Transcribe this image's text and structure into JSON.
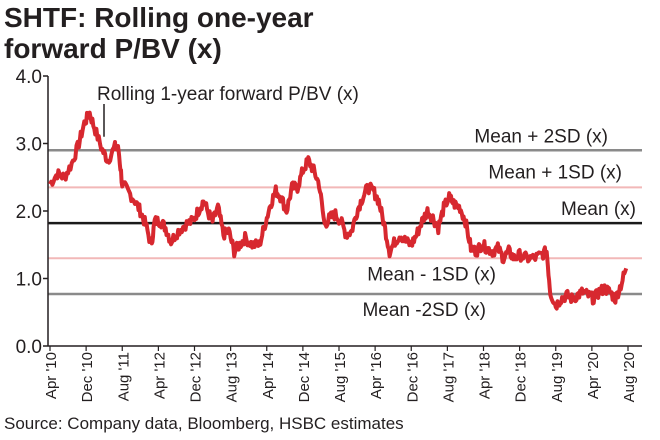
{
  "title_line1": "SHTF: Rolling one-year",
  "title_line2": "forward P/BV (x)",
  "source": "Source: Company data, Bloomberg, HSBC estimates",
  "colors": {
    "series": "#d7282f",
    "mean": "#1a1a1a",
    "sd2": "#8a8a8a",
    "sd1": "#f2b8b8",
    "text": "#231f20"
  },
  "chart_data": {
    "type": "line",
    "ylim": [
      0,
      4
    ],
    "yticks": [
      "0.0",
      "1.0",
      "2.0",
      "3.0",
      "4.0"
    ],
    "xticks": [
      "Apr '10",
      "Dec '10",
      "Aug '11",
      "Apr '12",
      "Dec '12",
      "Aug '13",
      "Apr '14",
      "Dec '14",
      "Aug '15",
      "Apr '16",
      "Dec '16",
      "Aug '17",
      "Apr '18",
      "Dec '18",
      "Aug '19",
      "Apr '20",
      "Aug '20"
    ],
    "series": [
      {
        "name": "Rolling 1-year forward P/BV (x)",
        "x_index_range": [
          0,
          16
        ],
        "values": [
          [
            0.0,
            2.4
          ],
          [
            0.2,
            2.55
          ],
          [
            0.4,
            2.5
          ],
          [
            0.6,
            2.7
          ],
          [
            0.8,
            3.0
          ],
          [
            0.95,
            3.3
          ],
          [
            1.1,
            3.45
          ],
          [
            1.25,
            3.2
          ],
          [
            1.45,
            2.9
          ],
          [
            1.6,
            2.75
          ],
          [
            1.8,
            2.95
          ],
          [
            1.9,
            2.9
          ],
          [
            2.0,
            2.4
          ],
          [
            2.15,
            2.3
          ],
          [
            2.35,
            2.15
          ],
          [
            2.5,
            2.0
          ],
          [
            2.65,
            1.8
          ],
          [
            2.8,
            1.5
          ],
          [
            2.9,
            1.85
          ],
          [
            3.05,
            1.85
          ],
          [
            3.2,
            1.75
          ],
          [
            3.35,
            1.55
          ],
          [
            3.55,
            1.7
          ],
          [
            3.75,
            1.8
          ],
          [
            3.95,
            1.85
          ],
          [
            4.1,
            2.0
          ],
          [
            4.25,
            2.15
          ],
          [
            4.4,
            1.95
          ],
          [
            4.5,
            1.85
          ],
          [
            4.65,
            2.05
          ],
          [
            4.8,
            1.65
          ],
          [
            4.95,
            1.7
          ],
          [
            5.1,
            1.4
          ],
          [
            5.25,
            1.5
          ],
          [
            5.4,
            1.6
          ],
          [
            5.6,
            1.5
          ],
          [
            5.8,
            1.5
          ],
          [
            5.95,
            1.8
          ],
          [
            6.1,
            2.1
          ],
          [
            6.25,
            2.3
          ],
          [
            6.4,
            2.2
          ],
          [
            6.55,
            2.0
          ],
          [
            6.7,
            2.35
          ],
          [
            6.85,
            2.35
          ],
          [
            7.0,
            2.6
          ],
          [
            7.15,
            2.75
          ],
          [
            7.3,
            2.6
          ],
          [
            7.45,
            2.4
          ],
          [
            7.6,
            1.8
          ],
          [
            7.75,
            1.9
          ],
          [
            7.9,
            1.95
          ],
          [
            8.05,
            1.85
          ],
          [
            8.2,
            1.65
          ],
          [
            8.35,
            1.7
          ],
          [
            8.5,
            2.0
          ],
          [
            8.65,
            2.2
          ],
          [
            8.8,
            2.35
          ],
          [
            8.95,
            2.3
          ],
          [
            9.1,
            2.15
          ],
          [
            9.25,
            1.8
          ],
          [
            9.4,
            1.4
          ],
          [
            9.55,
            1.55
          ],
          [
            9.7,
            1.65
          ],
          [
            9.85,
            1.55
          ],
          [
            10.0,
            1.5
          ],
          [
            10.15,
            1.65
          ],
          [
            10.3,
            1.85
          ],
          [
            10.45,
            2.0
          ],
          [
            10.6,
            1.9
          ],
          [
            10.75,
            1.75
          ],
          [
            10.9,
            2.05
          ],
          [
            11.05,
            2.2
          ],
          [
            11.2,
            2.1
          ],
          [
            11.35,
            2.05
          ],
          [
            11.5,
            1.85
          ],
          [
            11.65,
            1.45
          ],
          [
            11.8,
            1.4
          ],
          [
            11.95,
            1.5
          ],
          [
            12.1,
            1.45
          ],
          [
            12.25,
            1.4
          ],
          [
            12.4,
            1.45
          ],
          [
            12.55,
            1.3
          ],
          [
            12.7,
            1.4
          ],
          [
            12.85,
            1.3
          ],
          [
            13.0,
            1.35
          ],
          [
            13.2,
            1.3
          ],
          [
            13.4,
            1.3
          ],
          [
            13.6,
            1.35
          ],
          [
            13.75,
            1.4
          ],
          [
            13.85,
            0.8
          ],
          [
            14.0,
            0.6
          ],
          [
            14.15,
            0.7
          ],
          [
            14.3,
            0.75
          ],
          [
            14.45,
            0.7
          ],
          [
            14.6,
            0.75
          ],
          [
            14.75,
            0.8
          ],
          [
            14.9,
            0.75
          ],
          [
            15.05,
            0.7
          ],
          [
            15.2,
            0.8
          ],
          [
            15.35,
            0.85
          ],
          [
            15.5,
            0.8
          ],
          [
            15.65,
            0.7
          ],
          [
            15.8,
            0.9
          ],
          [
            15.95,
            1.15
          ]
        ]
      }
    ],
    "reference_lines": [
      {
        "label": "Mean + 2SD (x)",
        "value": 2.9
      },
      {
        "label": "Mean + 1SD (x)",
        "value": 2.35
      },
      {
        "label": "Mean (x)",
        "value": 1.82
      },
      {
        "label": "Mean - 1SD (x)",
        "value": 1.3
      },
      {
        "label": "Mean -2SD (x)",
        "value": 0.77
      }
    ],
    "annotation": "Rolling 1-year forward P/BV (x)",
    "grid": false,
    "legend": "none"
  }
}
